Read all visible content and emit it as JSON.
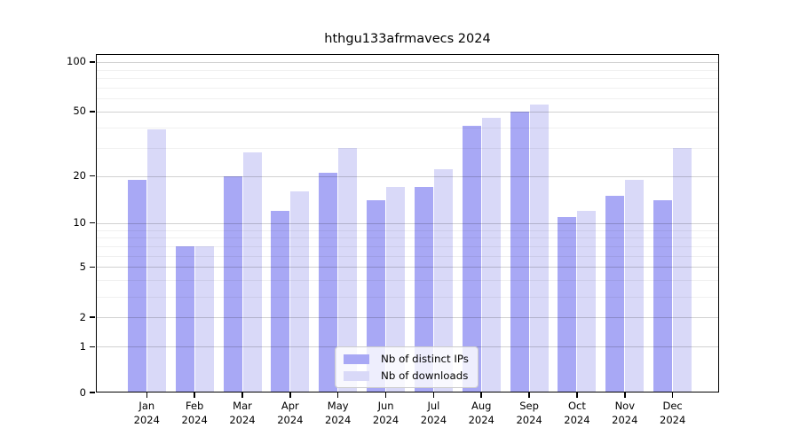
{
  "chart_data": {
    "type": "bar",
    "title": "hthgu133afrmavecs 2024",
    "categories": [
      "Jan 2024",
      "Feb 2024",
      "Mar 2024",
      "Apr 2024",
      "May 2024",
      "Jun 2024",
      "Jul 2024",
      "Aug 2024",
      "Sep 2024",
      "Oct 2024",
      "Nov 2024",
      "Dec 2024"
    ],
    "series": [
      {
        "name": "Nb of distinct IPs",
        "values": [
          19,
          7,
          20,
          12,
          21,
          14,
          17,
          41,
          50,
          11,
          15,
          14
        ],
        "color": "#a8a8f5"
      },
      {
        "name": "Nb of downloads",
        "values": [
          39,
          7,
          28,
          16,
          30,
          17,
          22,
          46,
          55,
          12,
          19,
          30
        ],
        "color": "#d9d9f8"
      }
    ],
    "y_scale": "log10(1+v)",
    "y_ticks": [
      0,
      1,
      2,
      5,
      10,
      20,
      50,
      100
    ],
    "ylim": [
      0,
      113
    ],
    "grid": "major and minor horizontal gridlines",
    "legend_position": "lower center"
  },
  "x_axis": {
    "months": [
      "Jan",
      "Feb",
      "Mar",
      "Apr",
      "May",
      "Jun",
      "Jul",
      "Aug",
      "Sep",
      "Oct",
      "Nov",
      "Dec"
    ],
    "year": "2024"
  },
  "y_axis": {
    "tick_labels": [
      "100",
      "50",
      "20",
      "10",
      "5",
      "2",
      "1",
      "0"
    ],
    "major_ticks": [
      100,
      50,
      20,
      10,
      5,
      2,
      1,
      0
    ],
    "minor_gridlines": [
      3,
      4,
      6,
      7,
      8,
      9,
      30,
      40,
      60,
      70,
      80,
      90
    ]
  },
  "colors": {
    "distinct_ips_bar": "#a8a8f5",
    "downloads_bar": "#d9d9f8",
    "grid_major": "rgba(0,0,0,0.18)",
    "grid_minor": "rgba(0,0,0,0.06)",
    "axis": "#000000",
    "legend_border": "#cccccc",
    "background": "#ffffff"
  }
}
